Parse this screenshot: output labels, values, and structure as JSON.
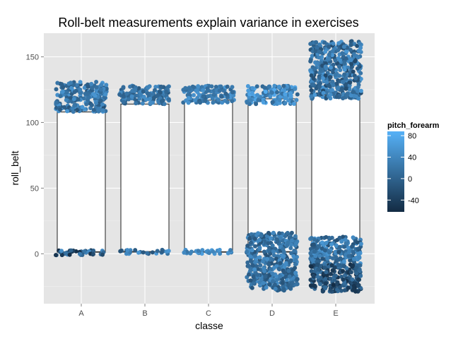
{
  "chart_data": {
    "type": "scatter",
    "subtype": "boxplot-with-jitter",
    "title": "Roll-belt measurements explain variance in exercises",
    "xlabel": "classe",
    "ylabel": "roll_belt",
    "categories": [
      "A",
      "B",
      "C",
      "D",
      "E"
    ],
    "ylim": [
      -38,
      168
    ],
    "yticks": [
      0,
      50,
      100,
      150
    ],
    "grid": true,
    "boxes": [
      {
        "category": "A",
        "q1": 1.2,
        "median": 1.5,
        "q3": 108
      },
      {
        "category": "B",
        "q1": 1.3,
        "median": 1.6,
        "q3": 114
      },
      {
        "category": "C",
        "q1": 1.2,
        "median": 1.5,
        "q3": 117
      },
      {
        "category": "D",
        "q1": 1.3,
        "median": 1.6,
        "q3": 118
      },
      {
        "category": "E",
        "q1": 1.3,
        "median": 1.6,
        "q3": 121
      }
    ],
    "point_clusters": [
      {
        "category": "A",
        "y_min": 108,
        "y_max": 131,
        "pitch_range": [
          -20,
          60
        ]
      },
      {
        "category": "A",
        "y_min": -1,
        "y_max": 3,
        "pitch_range": [
          -60,
          60
        ]
      },
      {
        "category": "B",
        "y_min": 114,
        "y_max": 128,
        "pitch_range": [
          -10,
          50
        ]
      },
      {
        "category": "B",
        "y_min": 0,
        "y_max": 3,
        "pitch_range": [
          -20,
          60
        ]
      },
      {
        "category": "C",
        "y_min": 115,
        "y_max": 128,
        "pitch_range": [
          0,
          60
        ]
      },
      {
        "category": "C",
        "y_min": 0,
        "y_max": 3,
        "pitch_range": [
          20,
          70
        ]
      },
      {
        "category": "D",
        "y_min": 114,
        "y_max": 128,
        "pitch_range": [
          0,
          80
        ]
      },
      {
        "category": "D",
        "y_min": -28,
        "y_max": 16,
        "pitch_range": [
          -20,
          50
        ]
      },
      {
        "category": "E",
        "y_min": 118,
        "y_max": 162,
        "pitch_range": [
          -30,
          60
        ]
      },
      {
        "category": "E",
        "y_min": -10,
        "y_max": 13,
        "pitch_range": [
          -20,
          60
        ]
      },
      {
        "category": "E",
        "y_min": -29,
        "y_max": -8,
        "pitch_range": [
          -60,
          20
        ]
      }
    ],
    "legend": {
      "title": "pitch_forearm",
      "position": "right",
      "breaks": [
        80,
        40,
        0,
        -40
      ],
      "labels": [
        "80",
        "40",
        "0",
        "-40"
      ],
      "range": [
        -62,
        88
      ],
      "low_color": "#132b43",
      "high_color": "#56b1f7"
    }
  }
}
